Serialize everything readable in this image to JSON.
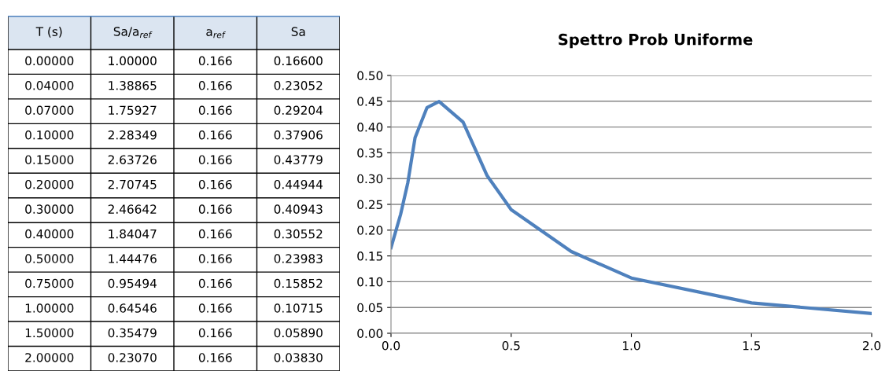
{
  "chart_data": [
    {
      "type": "other",
      "categories": [
        "T (s)",
        "Sa/a$_{ref}$",
        "a$_{ref}$",
        "Sa"
      ],
      "cell_labels": [
        [
          "0.00000",
          "1.00000",
          "0.166",
          "0.16600"
        ],
        [
          "0.04000",
          "1.38865",
          "0.166",
          "0.23052"
        ],
        [
          "0.07000",
          "1.75927",
          "0.166",
          "0.29204"
        ],
        [
          "0.10000",
          "2.28349",
          "0.166",
          "0.37906"
        ],
        [
          "0.15000",
          "2.63726",
          "0.166",
          "0.43779"
        ],
        [
          "0.20000",
          "2.70745",
          "0.166",
          "0.44944"
        ],
        [
          "0.30000",
          "2.46642",
          "0.166",
          "0.40943"
        ],
        [
          "0.40000",
          "1.84047",
          "0.166",
          "0.30552"
        ],
        [
          "0.50000",
          "1.44476",
          "0.166",
          "0.23983"
        ],
        [
          "0.75000",
          "0.95494",
          "0.166",
          "0.15852"
        ],
        [
          "1.00000",
          "0.64546",
          "0.166",
          "0.10715"
        ],
        [
          "1.50000",
          "0.35479",
          "0.166",
          "0.05890"
        ],
        [
          "2.00000",
          "0.23070",
          "0.166",
          "0.03830"
        ]
      ]
    },
    {
      "type": "line",
      "title": "Spettro Prob Uniforme",
      "x": [
        0.0,
        0.04,
        0.07,
        0.1,
        0.15,
        0.2,
        0.3,
        0.4,
        0.5,
        0.75,
        1.0,
        1.5,
        2.0
      ],
      "series": [
        {
          "color": "#4f81bd",
          "values": [
            0.166,
            0.23052,
            0.29204,
            0.37906,
            0.43779,
            0.44944,
            0.40943,
            0.30552,
            0.23983,
            0.15852,
            0.10715,
            0.0589,
            0.0383
          ]
        }
      ],
      "xlim": [
        0,
        2
      ],
      "xticks": [
        {
          "value": 0,
          "label": "0.0"
        },
        {
          "value": 0.5,
          "label": "0.5"
        },
        {
          "value": 1,
          "label": "1.0"
        },
        {
          "value": 1.5,
          "label": "1.5"
        },
        {
          "value": 2,
          "label": "2.0"
        }
      ],
      "ylim": [
        0,
        0.5
      ],
      "yticks": [
        {
          "value": 0,
          "label": "0.00"
        },
        {
          "value": 0.05,
          "label": "0.05"
        },
        {
          "value": 0.1,
          "label": "0.10"
        },
        {
          "value": 0.15,
          "label": "0.15"
        },
        {
          "value": 0.2,
          "label": "0.20"
        },
        {
          "value": 0.25,
          "label": "0.25"
        },
        {
          "value": 0.3,
          "label": "0.30"
        },
        {
          "value": 0.35,
          "label": "0.35"
        },
        {
          "value": 0.4,
          "label": "0.40"
        },
        {
          "value": 0.45,
          "label": "0.45"
        },
        {
          "value": 0.5,
          "label": "0.50"
        }
      ],
      "grid": "y",
      "marker": "none",
      "line_style": "solid"
    }
  ]
}
